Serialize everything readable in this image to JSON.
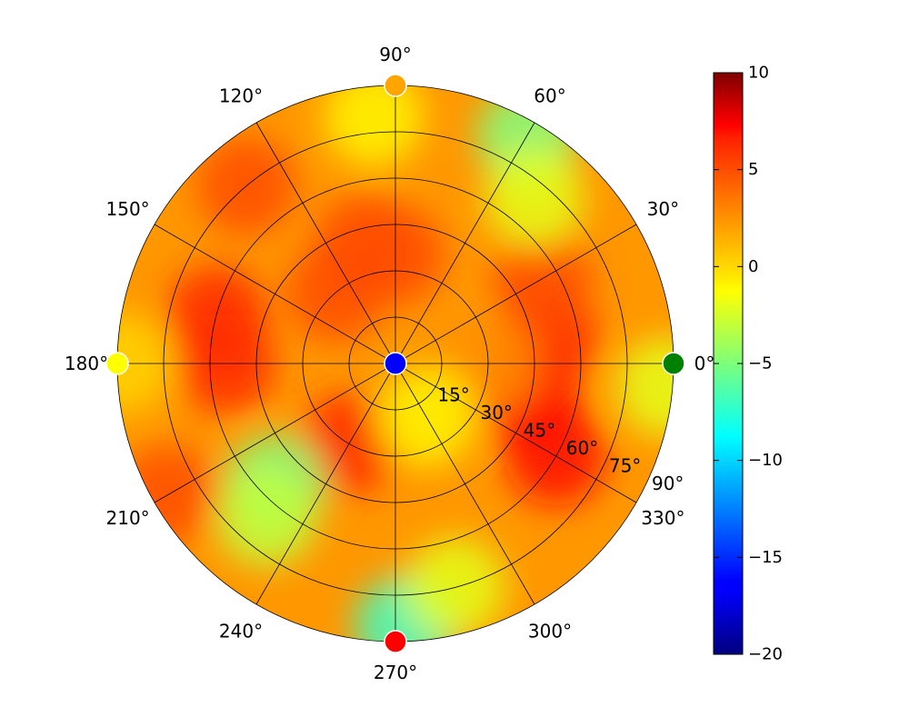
{
  "chart_data": {
    "type": "heatmap",
    "projection": "polar",
    "title": "",
    "theta_tick_labels": [
      "0°",
      "30°",
      "60°",
      "90°",
      "120°",
      "150°",
      "180°",
      "210°",
      "240°",
      "270°",
      "300°",
      "330°"
    ],
    "radial_tick_labels": [
      "15°",
      "30°",
      "45°",
      "60°",
      "75°",
      "90°"
    ],
    "radial_range": [
      0,
      90
    ],
    "grid": true,
    "colorbar": {
      "colormap": "jet",
      "range": [
        -20,
        10
      ],
      "tick_labels": [
        "10",
        "5",
        "0",
        "−5",
        "−10",
        "−15",
        "−20"
      ],
      "placement": "right"
    },
    "heat_regions": [
      {
        "azimuth": 345,
        "elevation": 45,
        "value": 6
      },
      {
        "azimuth": 330,
        "elevation": 60,
        "value": 6
      },
      {
        "azimuth": 10,
        "elevation": 50,
        "value": 5
      },
      {
        "azimuth": 30,
        "elevation": 55,
        "value": 4
      },
      {
        "azimuth": 0,
        "elevation": 30,
        "value": 2
      },
      {
        "azimuth": 180,
        "elevation": 55,
        "value": 5
      },
      {
        "azimuth": 165,
        "elevation": 60,
        "value": 5
      },
      {
        "azimuth": 105,
        "elevation": 40,
        "value": 4
      },
      {
        "azimuth": 90,
        "elevation": 35,
        "value": 4
      },
      {
        "azimuth": 130,
        "elevation": 75,
        "value": 4
      },
      {
        "azimuth": 240,
        "elevation": 30,
        "value": 5
      },
      {
        "azimuth": 210,
        "elevation": 85,
        "value": 4
      },
      {
        "azimuth": 130,
        "elevation": 30,
        "value": 4
      },
      {
        "azimuth": 60,
        "elevation": 85,
        "value": -5
      },
      {
        "azimuth": 50,
        "elevation": 70,
        "value": -2
      },
      {
        "azimuth": 225,
        "elevation": 55,
        "value": -5
      },
      {
        "azimuth": 230,
        "elevation": 65,
        "value": -3
      },
      {
        "azimuth": 272,
        "elevation": 85,
        "value": -7
      },
      {
        "azimuth": 285,
        "elevation": 75,
        "value": -2
      },
      {
        "azimuth": 355,
        "elevation": 88,
        "value": -2
      },
      {
        "azimuth": 180,
        "elevation": 88,
        "value": 0
      },
      {
        "azimuth": 95,
        "elevation": 80,
        "value": -1
      },
      {
        "azimuth": 300,
        "elevation": 20,
        "value": -1
      }
    ],
    "markers": [
      {
        "azimuth": 0,
        "elevation": 90,
        "color": "#008000"
      },
      {
        "azimuth": 90,
        "elevation": 90,
        "color": "#ffa500"
      },
      {
        "azimuth": 180,
        "elevation": 90,
        "color": "#ffff00"
      },
      {
        "azimuth": 270,
        "elevation": 90,
        "color": "#ff0000"
      },
      {
        "azimuth": 0,
        "elevation": 0,
        "color": "#0000ff"
      }
    ]
  }
}
